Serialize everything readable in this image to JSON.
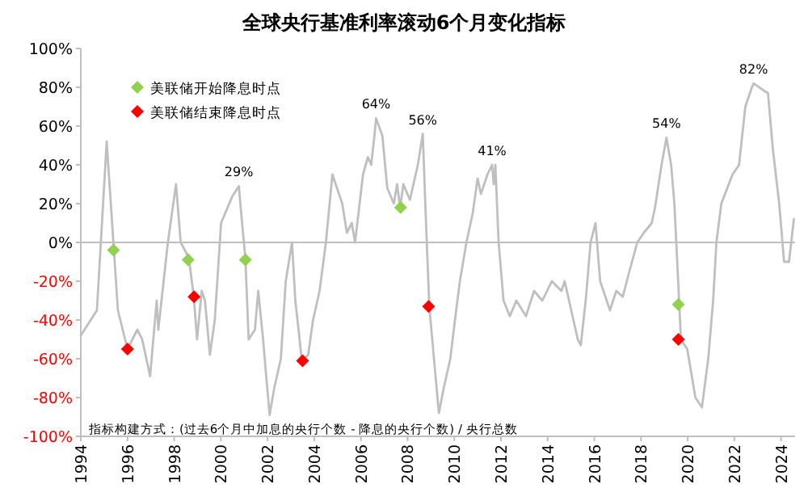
{
  "chart_data": {
    "type": "line",
    "title": "全球央行基准利率滚动6个月变化指标",
    "xlim": [
      1994,
      2024.6
    ],
    "xticks": [
      1994,
      1996,
      1998,
      2000,
      2002,
      2004,
      2006,
      2008,
      2010,
      2012,
      2014,
      2016,
      2018,
      2020,
      2022,
      2024
    ],
    "ylim": [
      -100,
      100
    ],
    "yticks": [
      {
        "value": -100,
        "label": "-100%"
      },
      {
        "value": -80,
        "label": "-80%"
      },
      {
        "value": -60,
        "label": "-60%"
      },
      {
        "value": -40,
        "label": "-40%"
      },
      {
        "value": -20,
        "label": "-20%"
      },
      {
        "value": 0,
        "label": "0%"
      },
      {
        "value": 20,
        "label": "20%"
      },
      {
        "value": 40,
        "label": "40%"
      },
      {
        "value": 60,
        "label": "60%"
      },
      {
        "value": 80,
        "label": "80%"
      },
      {
        "value": 100,
        "label": "100%"
      }
    ],
    "legend": "top left",
    "grid": false,
    "ref_lines": [
      {
        "axis": "y",
        "value": 0,
        "color": "#bfbfbf"
      }
    ],
    "series": [
      {
        "color": "#bfbfbf",
        "line_style": "solid",
        "marker": "none",
        "x": [
          1994,
          1994.69,
          1995.11,
          1995.59,
          1996.0,
          1996.42,
          1996.63,
          1996.97,
          1997.25,
          1997.32,
          1997.73,
          1998.08,
          1998.28,
          1998.63,
          1998.84,
          1998.98,
          1999.18,
          1999.32,
          1999.53,
          1999.74,
          2000.01,
          2000.5,
          2000.77,
          2000.91,
          2001.05,
          2001.19,
          2001.46,
          2001.6,
          2001.81,
          2001.95,
          2002.09,
          2002.29,
          2002.57,
          2002.78,
          2003.05,
          2003.19,
          2003.33,
          2003.47,
          2003.74,
          2003.95,
          2004.23,
          2004.5,
          2004.78,
          2005.06,
          2005.2,
          2005.4,
          2005.61,
          2005.75,
          2006.09,
          2006.3,
          2006.44,
          2006.58,
          2006.65,
          2006.92,
          2007.13,
          2007.41,
          2007.55,
          2007.68,
          2007.82,
          2008.1,
          2008.44,
          2008.65,
          2008.79,
          2008.93,
          2009.13,
          2009.34,
          2009.55,
          2009.83,
          2010.03,
          2010.24,
          2010.52,
          2010.79,
          2011.0,
          2011.14,
          2011.42,
          2011.62,
          2011.69,
          2011.76,
          2011.9,
          2012.11,
          2012.38,
          2012.66,
          2013.07,
          2013.42,
          2013.77,
          2014.18,
          2014.59,
          2014.73,
          2015.01,
          2015.29,
          2015.42,
          2015.63,
          2015.84,
          2016.05,
          2016.25,
          2016.67,
          2016.94,
          2017.22,
          2017.5,
          2017.84,
          2018.12,
          2018.46,
          2018.6,
          2018.88,
          2019.09,
          2019.29,
          2019.43,
          2019.64,
          2019.71,
          2019.98,
          2020.33,
          2020.61,
          2020.88,
          2021.09,
          2021.23,
          2021.44,
          2021.92,
          2022.2,
          2022.47,
          2022.75,
          2022.82,
          2023.3,
          2023.44,
          2023.65,
          2023.92,
          2024.13,
          2024.34,
          2024.55
        ],
        "values": [
          -48,
          -35,
          52,
          -35,
          -55,
          -45,
          -50,
          -69,
          -30,
          -45,
          0,
          30,
          0,
          -8,
          -28,
          -50,
          -25,
          -30,
          -58,
          -40,
          10,
          24,
          29,
          10,
          -8,
          -50,
          -45,
          -25,
          -50,
          -70,
          -89,
          -75,
          -60,
          -20,
          0,
          -30,
          -45,
          -61,
          -58,
          -40,
          -25,
          0,
          35,
          25,
          20,
          5,
          10,
          0,
          35,
          44,
          40,
          55,
          64,
          55,
          28,
          20,
          30,
          18,
          30,
          22,
          40,
          56,
          10,
          -33,
          -60,
          -88,
          -75,
          -60,
          -40,
          -20,
          0,
          15,
          33,
          25,
          35,
          40,
          30,
          40,
          0,
          -30,
          -38,
          -30,
          -38,
          -25,
          -30,
          -20,
          -25,
          -20,
          -35,
          -50,
          -53,
          -30,
          0,
          10,
          -20,
          -35,
          -25,
          -28,
          -15,
          0,
          5,
          10,
          18,
          40,
          54,
          40,
          20,
          -32,
          -50,
          -55,
          -80,
          -85,
          -60,
          -30,
          0,
          20,
          35,
          40,
          70,
          80,
          82,
          78,
          77,
          48,
          20,
          -10,
          -10,
          12
        ]
      },
      {
        "type": "scatter",
        "name": "美联储开始降息时点",
        "color": "#92d050",
        "marker": "diamond",
        "x": [
          1995.4,
          1998.6,
          2001.05,
          2007.7,
          2019.6
        ],
        "values": [
          -4,
          -9,
          -9,
          18,
          -32
        ]
      },
      {
        "type": "scatter",
        "name": "美联储结束降息时点",
        "color": "#ff0000",
        "marker": "diamond",
        "x": [
          1996.0,
          1998.85,
          2003.5,
          2008.9,
          2019.6
        ],
        "values": [
          -55,
          -28,
          -61,
          -33,
          -50
        ]
      }
    ],
    "annotations": [
      {
        "text": "29%",
        "x": 2000.77,
        "y": 29
      },
      {
        "text": "64%",
        "x": 2006.65,
        "y": 64
      },
      {
        "text": "56%",
        "x": 2008.65,
        "y": 56
      },
      {
        "text": "41%",
        "x": 2011.62,
        "y": 40
      },
      {
        "text": "54%",
        "x": 2019.09,
        "y": 54
      },
      {
        "text": "82%",
        "x": 2022.82,
        "y": 82
      },
      "指标构建方式：(过去6个月中加息的央行个数 - 降息的央行个数) / 央行总数"
    ]
  }
}
